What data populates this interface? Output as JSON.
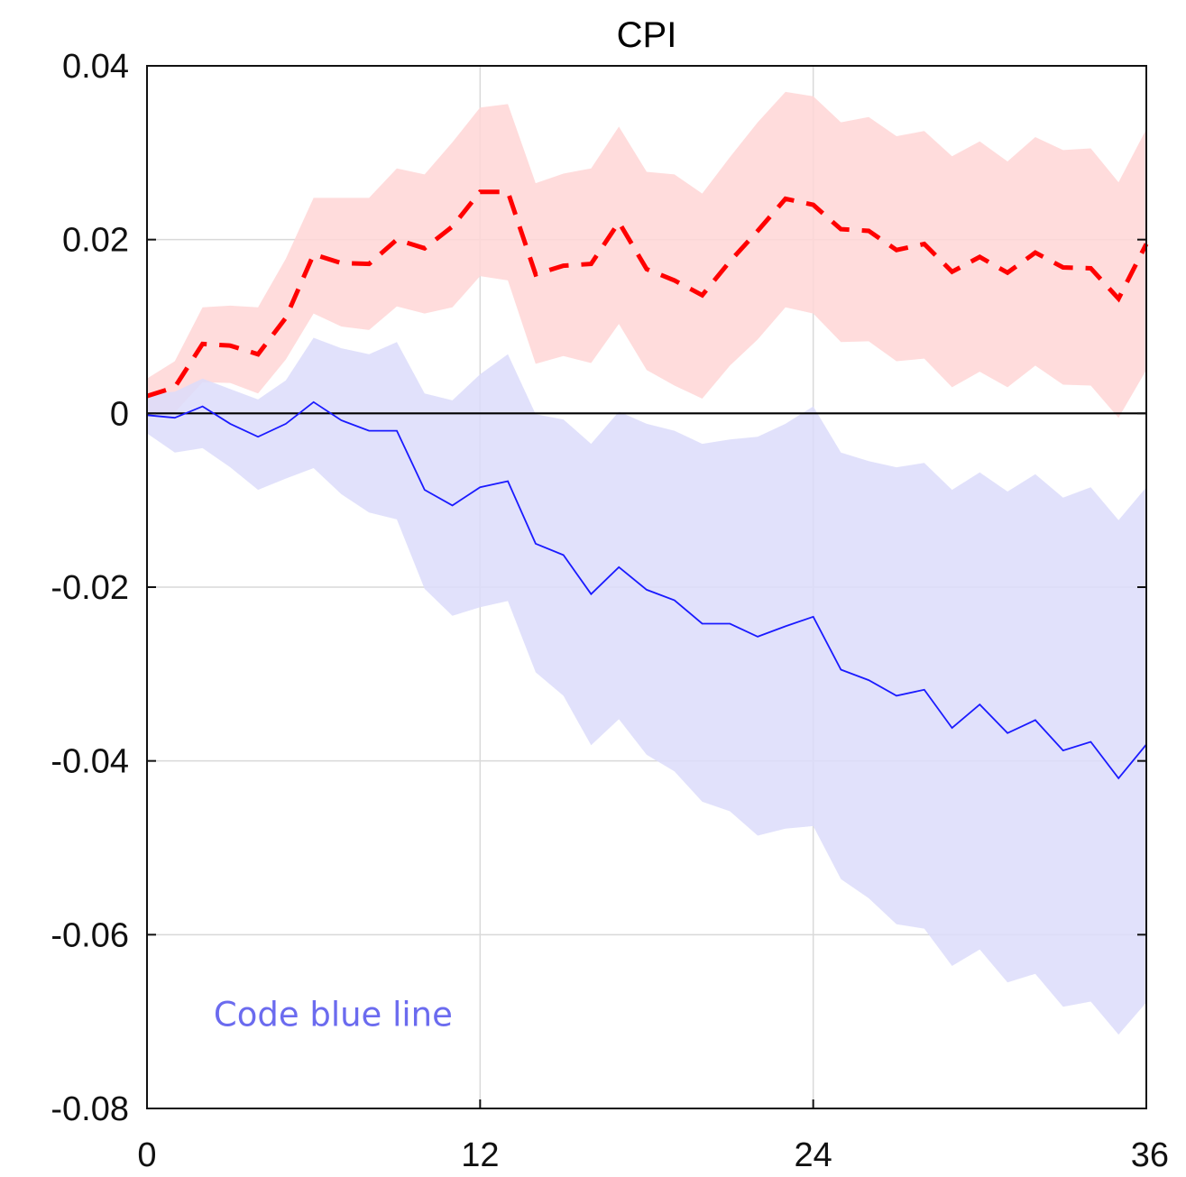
{
  "chart_data": {
    "type": "line",
    "title": "CPI",
    "xlabel": "",
    "ylabel": "",
    "xlim": [
      0,
      36
    ],
    "ylim": [
      -0.08,
      0.04
    ],
    "x_ticks": [
      0,
      12,
      24,
      36
    ],
    "x_tick_labels": [
      "0",
      "12",
      "24",
      "36"
    ],
    "y_ticks": [
      0.04,
      0.02,
      0,
      -0.02,
      -0.04,
      -0.06,
      -0.08
    ],
    "y_tick_labels": [
      "0.04",
      "0.02",
      "0",
      "-0.02",
      "-0.04",
      "-0.06",
      "-0.08"
    ],
    "grid": true,
    "zero_line": true,
    "annotation": {
      "text": "Code blue line",
      "color": "#6b6bef",
      "x": 2.4,
      "y": -0.0705
    },
    "series": [
      {
        "color": "#ff0000",
        "band_color": "#ffd6d6",
        "line_style": "dashed",
        "x": [
          0,
          1,
          2,
          3,
          4,
          5,
          6,
          7,
          8,
          9,
          10,
          11,
          12,
          13,
          14,
          15,
          16,
          17,
          18,
          19,
          20,
          21,
          22,
          23,
          24,
          25,
          26,
          27,
          28,
          29,
          30,
          31,
          32,
          33,
          34,
          35,
          36
        ],
        "values": [
          0.002,
          0.003,
          0.008,
          0.0078,
          0.0068,
          0.011,
          0.0183,
          0.0173,
          0.0172,
          0.02,
          0.019,
          0.0215,
          0.0255,
          0.0255,
          0.016,
          0.017,
          0.0172,
          0.022,
          0.0166,
          0.0153,
          0.0136,
          0.0175,
          0.021,
          0.0247,
          0.024,
          0.0212,
          0.021,
          0.0188,
          0.0195,
          0.0163,
          0.018,
          0.0162,
          0.0185,
          0.0168,
          0.0167,
          0.0132,
          0.0195
        ],
        "upper": [
          0.004,
          0.006,
          0.0122,
          0.0124,
          0.0122,
          0.0178,
          0.0248,
          0.0248,
          0.0248,
          0.0282,
          0.0275,
          0.0312,
          0.0352,
          0.0356,
          0.0265,
          0.0276,
          0.0282,
          0.033,
          0.0278,
          0.0275,
          0.0253,
          0.0295,
          0.0335,
          0.037,
          0.0365,
          0.0335,
          0.0341,
          0.0319,
          0.0325,
          0.0296,
          0.0313,
          0.029,
          0.0318,
          0.0303,
          0.0305,
          0.0266,
          0.0327
        ],
        "lower": [
          0.0001,
          0.0001,
          0.0036,
          0.0035,
          0.0023,
          0.0062,
          0.0115,
          0.01,
          0.0096,
          0.0123,
          0.0115,
          0.0122,
          0.0158,
          0.0153,
          0.0057,
          0.0066,
          0.0058,
          0.0103,
          0.005,
          0.0032,
          0.0017,
          0.0055,
          0.0085,
          0.0122,
          0.0115,
          0.0082,
          0.0083,
          0.006,
          0.0063,
          0.003,
          0.0048,
          0.003,
          0.0055,
          0.0033,
          0.0032,
          -0.0005,
          0.005
        ]
      },
      {
        "color": "#1a1aff",
        "band_color": "#dcdcfa",
        "line_style": "solid",
        "x": [
          0,
          1,
          2,
          3,
          4,
          5,
          6,
          7,
          8,
          9,
          10,
          11,
          12,
          13,
          14,
          15,
          16,
          17,
          18,
          19,
          20,
          21,
          22,
          23,
          24,
          25,
          26,
          27,
          28,
          29,
          30,
          31,
          32,
          33,
          34,
          35,
          36
        ],
        "values": [
          -0.0002,
          -0.0005,
          0.0008,
          -0.0012,
          -0.0027,
          -0.0012,
          0.0013,
          -0.0008,
          -0.002,
          -0.002,
          -0.0088,
          -0.0106,
          -0.0085,
          -0.0078,
          -0.015,
          -0.0163,
          -0.0208,
          -0.0177,
          -0.0203,
          -0.0215,
          -0.0242,
          -0.0242,
          -0.0257,
          -0.0245,
          -0.0234,
          -0.0295,
          -0.0307,
          -0.0325,
          -0.0318,
          -0.0362,
          -0.0335,
          -0.0368,
          -0.0353,
          -0.0388,
          -0.0378,
          -0.042,
          -0.0381
        ],
        "upper": [
          0.0022,
          0.0025,
          0.004,
          0.0028,
          0.0016,
          0.0038,
          0.0087,
          0.0075,
          0.0068,
          0.0082,
          0.0023,
          0.0015,
          0.0045,
          0.0068,
          -0.0001,
          -0.0007,
          -0.0035,
          0.0002,
          -0.0012,
          -0.002,
          -0.0035,
          -0.003,
          -0.0027,
          -0.0012,
          0.0008,
          -0.0045,
          -0.0055,
          -0.0062,
          -0.0057,
          -0.0088,
          -0.0068,
          -0.009,
          -0.007,
          -0.0097,
          -0.0085,
          -0.0123,
          -0.0085
        ],
        "lower": [
          -0.0023,
          -0.0045,
          -0.004,
          -0.0062,
          -0.0088,
          -0.0075,
          -0.0063,
          -0.0093,
          -0.0114,
          -0.0122,
          -0.0202,
          -0.0233,
          -0.0223,
          -0.0216,
          -0.0298,
          -0.0325,
          -0.0382,
          -0.0352,
          -0.0393,
          -0.0412,
          -0.0447,
          -0.0458,
          -0.0486,
          -0.0478,
          -0.0475,
          -0.0536,
          -0.0558,
          -0.0588,
          -0.0593,
          -0.0636,
          -0.0617,
          -0.0655,
          -0.0645,
          -0.0683,
          -0.0677,
          -0.0715,
          -0.0678
        ]
      }
    ]
  }
}
